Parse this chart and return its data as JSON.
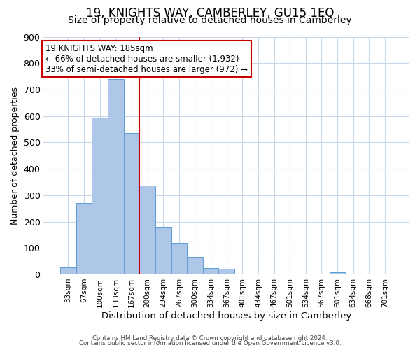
{
  "title": "19, KNIGHTS WAY, CAMBERLEY, GU15 1EQ",
  "subtitle": "Size of property relative to detached houses in Camberley",
  "xlabel": "Distribution of detached houses by size in Camberley",
  "ylabel": "Number of detached properties",
  "bar_labels": [
    "33sqm",
    "67sqm",
    "100sqm",
    "133sqm",
    "167sqm",
    "200sqm",
    "234sqm",
    "267sqm",
    "300sqm",
    "334sqm",
    "367sqm",
    "401sqm",
    "434sqm",
    "467sqm",
    "501sqm",
    "534sqm",
    "567sqm",
    "601sqm",
    "634sqm",
    "668sqm",
    "701sqm"
  ],
  "bar_heights": [
    27,
    270,
    595,
    740,
    535,
    337,
    180,
    120,
    65,
    25,
    20,
    0,
    0,
    0,
    0,
    0,
    0,
    8,
    0,
    0,
    0
  ],
  "bar_color": "#aec6e8",
  "bar_edge_color": "#5a9fd4",
  "vline_color": "#cc0000",
  "ylim": [
    0,
    900
  ],
  "yticks": [
    0,
    100,
    200,
    300,
    400,
    500,
    600,
    700,
    800,
    900
  ],
  "annotation_title": "19 KNIGHTS WAY: 185sqm",
  "annotation_line1": "← 66% of detached houses are smaller (1,932)",
  "annotation_line2": "33% of semi-detached houses are larger (972) →",
  "annotation_box_color": "#ffffff",
  "annotation_box_edge": "#cc0000",
  "footer1": "Contains HM Land Registry data © Crown copyright and database right 2024.",
  "footer2": "Contains public sector information licensed under the Open Government Licence v3.0.",
  "bg_color": "#ffffff",
  "grid_color": "#c8d8e8",
  "title_fontsize": 12,
  "subtitle_fontsize": 10
}
